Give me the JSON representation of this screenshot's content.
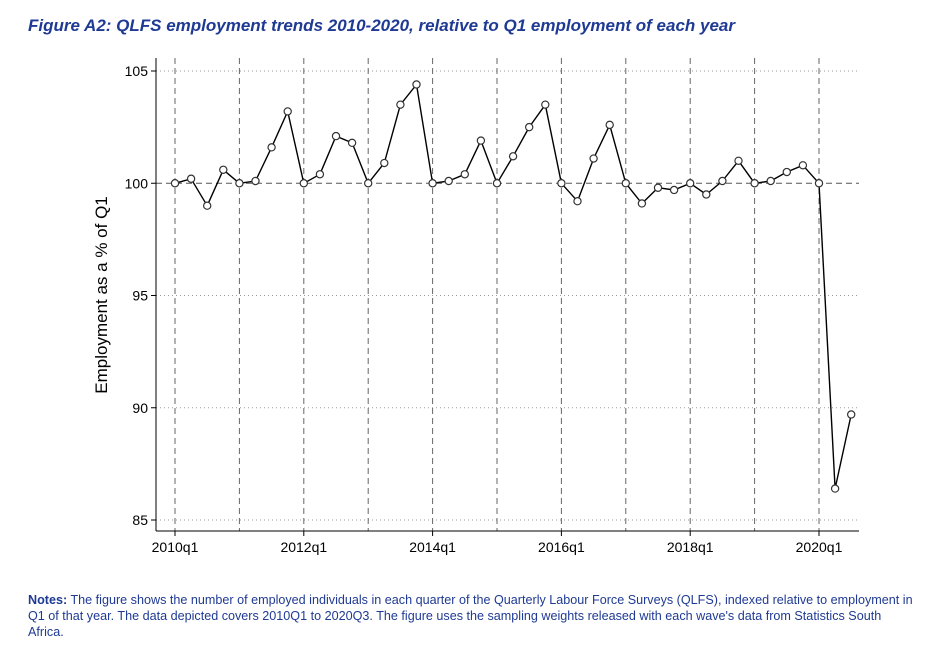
{
  "figure": {
    "title": "Figure A2: QLFS employment trends 2010-2020, relative to Q1 employment of each year"
  },
  "notes": {
    "label": "Notes:",
    "text": "The figure shows the number of employed individuals in each quarter of the Quarterly Labour Force Surveys (QLFS), indexed relative to employment in Q1 of that year. The data depicted covers 2010Q1 to 2020Q3. The figure uses the sampling weights released with each wave's data from Statistics South Africa."
  },
  "chart_data": {
    "type": "line",
    "title": "",
    "xlabel": "",
    "ylabel": "Employment as a % of Q1",
    "x": [
      "2010q1",
      "2010q2",
      "2010q3",
      "2010q4",
      "2011q1",
      "2011q2",
      "2011q3",
      "2011q4",
      "2012q1",
      "2012q2",
      "2012q3",
      "2012q4",
      "2013q1",
      "2013q2",
      "2013q3",
      "2013q4",
      "2014q1",
      "2014q2",
      "2014q3",
      "2014q4",
      "2015q1",
      "2015q2",
      "2015q3",
      "2015q4",
      "2016q1",
      "2016q2",
      "2016q3",
      "2016q4",
      "2017q1",
      "2017q2",
      "2017q3",
      "2017q4",
      "2018q1",
      "2018q2",
      "2018q3",
      "2018q4",
      "2019q1",
      "2019q2",
      "2019q3",
      "2019q4",
      "2020q1",
      "2020q2",
      "2020q3"
    ],
    "series": [
      {
        "values": [
          100,
          100.2,
          99.0,
          100.6,
          100,
          100.1,
          101.6,
          103.2,
          100,
          100.4,
          102.1,
          101.8,
          100,
          100.9,
          103.5,
          104.4,
          100,
          100.1,
          100.4,
          101.9,
          100,
          101.2,
          102.5,
          103.5,
          100,
          99.2,
          101.1,
          102.6,
          100,
          99.1,
          99.8,
          99.7,
          100,
          99.5,
          100.1,
          101.0,
          100,
          100.1,
          100.5,
          100.8,
          100,
          86.4,
          89.7
        ]
      }
    ],
    "xticks": [
      "2010q1",
      "2012q1",
      "2014q1",
      "2016q1",
      "2018q1",
      "2020q1"
    ],
    "yticks": [
      85,
      90,
      95,
      100,
      105
    ],
    "ylim": [
      85,
      105.5
    ],
    "reference_line": 100,
    "grid": true,
    "line_color": "#000000",
    "marker": "hollow-circle"
  }
}
